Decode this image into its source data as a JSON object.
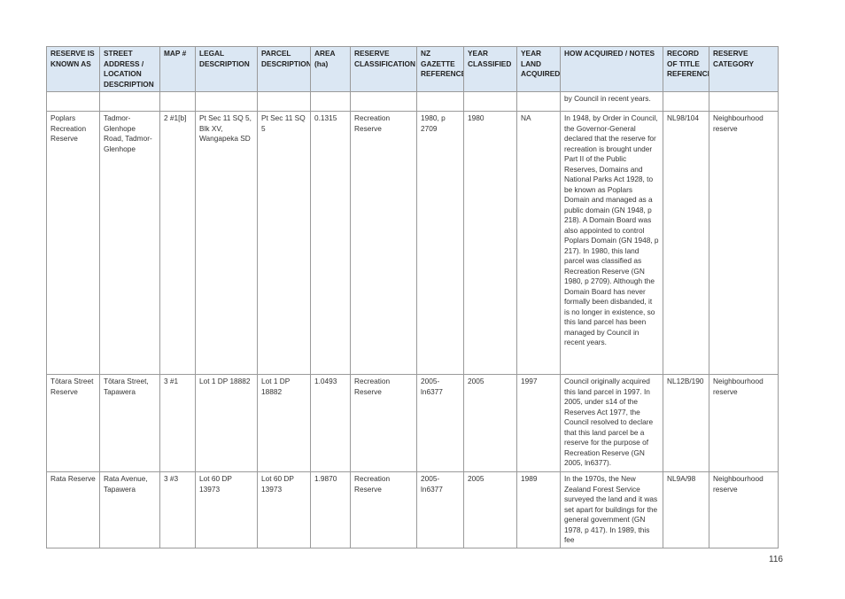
{
  "headers": [
    "RESERVE IS KNOWN AS",
    "STREET ADDRESS / LOCATION DESCRIPTION",
    "MAP #",
    "LEGAL DESCRIPTION",
    "PARCEL DESCRIPTION",
    "AREA (ha)",
    "RESERVE CLASSIFICATION",
    "NZ GAZETTE REFERENCE",
    "YEAR CLASSIFIED",
    "YEAR LAND ACQUIRED",
    "HOW ACQUIRED / NOTES",
    "RECORD OF TITLE REFERENCE",
    "RESERVE CATEGORY"
  ],
  "continued_notes": "by Council in recent years.",
  "rows": [
    [
      "Poplars Recreation Reserve",
      "Tadmor-Glenhope Road, Tadmor-Glenhope",
      "2 #1[b]",
      "Pt Sec 11 SQ 5, Blk XV, Wangapeka SD",
      "Pt Sec 11 SQ 5",
      "0.1315",
      "Recreation Reserve",
      "1980, p 2709",
      "1980",
      "NA",
      "In 1948, by Order in Council, the Governor-General declared that the reserve for recreation is brought under Part II of the Public Reserves, Domains and National Parks Act 1928, to be known as Poplars Domain and managed as a public domain (GN 1948, p 218). A Domain Board was also appointed to control Poplars Domain (GN 1948, p 217). In 1980, this land parcel was classified as Recreation Reserve (GN 1980, p 2709). Although the Domain Board has never formally been disbanded, it is no longer in existence, so this land parcel has been managed by Council in recent years.",
      "NL98/104",
      "Neighbourhood reserve"
    ],
    [
      "Tōtara Street Reserve",
      "Tōtara Street, Tapawera",
      "3 #1",
      "Lot 1 DP 18882",
      "Lot 1 DP 18882",
      "1.0493",
      "Recreation Reserve",
      "2005-ln6377",
      "2005",
      "1997",
      "Council originally acquired this land parcel in 1997. In 2005, under s14 of the Reserves Act 1977, the Council resolved to declare that this land parcel be a reserve for the purpose of Recreation Reserve (GN 2005, ln6377).",
      "NL12B/190",
      "Neighbourhood reserve"
    ],
    [
      "Rata Reserve",
      "Rata Avenue, Tapawera",
      "3 #3",
      "Lot 60 DP 13973",
      "Lot 60 DP 13973",
      "1.9870",
      "Recreation Reserve",
      "2005-ln6377",
      "2005",
      "1989",
      "In the 1970s, the New Zealand Forest Service surveyed the land and it was set apart for buildings for the general government (GN 1978, p 417). In 1989, this fee",
      "NL9A/98",
      "Neighbourhood reserve"
    ]
  ],
  "page_number": "116"
}
